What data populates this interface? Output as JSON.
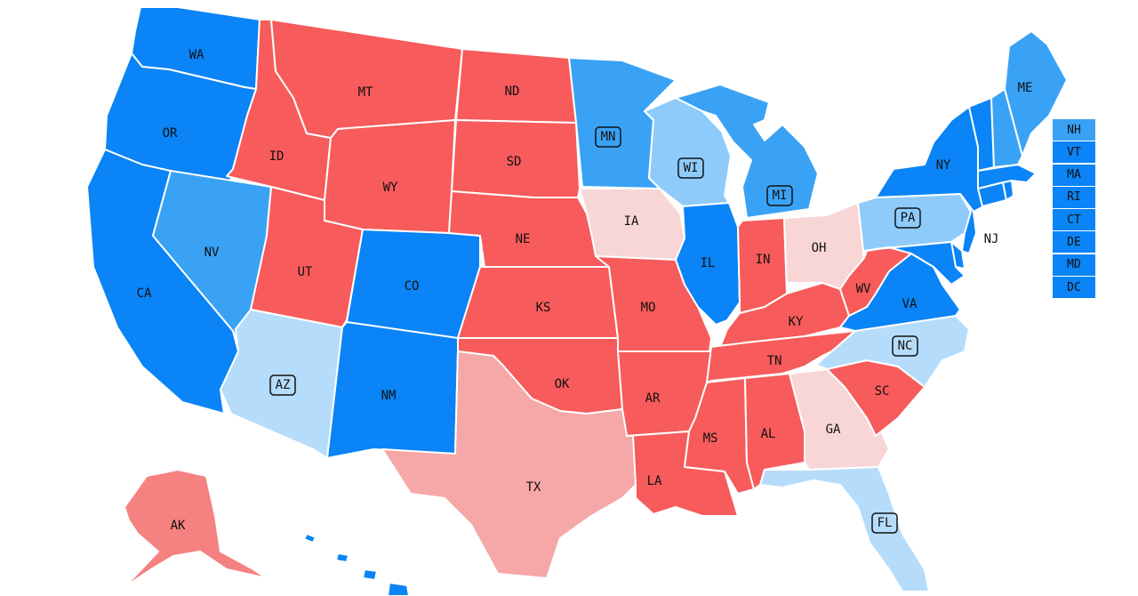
{
  "colors": {
    "safe_dem": "#0a84f6",
    "likely_dem": "#3aa2f5",
    "lean_dem": "#8ecbfa",
    "tilt_dem": "#b6dcfb",
    "safe_rep": "#f75b5b",
    "likely_rep": "#f58181",
    "lean_rep": "#f6a7a7",
    "tilt_rep": "#f9d6d6"
  },
  "states": [
    {
      "id": "WA",
      "label": "WA",
      "rating": "safe_dem",
      "badge": false
    },
    {
      "id": "OR",
      "label": "OR",
      "rating": "safe_dem",
      "badge": false
    },
    {
      "id": "CA",
      "label": "CA",
      "rating": "safe_dem",
      "badge": false
    },
    {
      "id": "NV",
      "label": "NV",
      "rating": "likely_dem",
      "badge": false
    },
    {
      "id": "ID",
      "label": "ID",
      "rating": "safe_rep",
      "badge": false
    },
    {
      "id": "MT",
      "label": "MT",
      "rating": "safe_rep",
      "badge": false
    },
    {
      "id": "WY",
      "label": "WY",
      "rating": "safe_rep",
      "badge": false
    },
    {
      "id": "UT",
      "label": "UT",
      "rating": "safe_rep",
      "badge": false
    },
    {
      "id": "AZ",
      "label": "AZ",
      "rating": "tilt_dem",
      "badge": true
    },
    {
      "id": "CO",
      "label": "CO",
      "rating": "safe_dem",
      "badge": false
    },
    {
      "id": "NM",
      "label": "NM",
      "rating": "safe_dem",
      "badge": false
    },
    {
      "id": "ND",
      "label": "ND",
      "rating": "safe_rep",
      "badge": false
    },
    {
      "id": "SD",
      "label": "SD",
      "rating": "safe_rep",
      "badge": false
    },
    {
      "id": "NE",
      "label": "NE",
      "rating": "safe_rep",
      "badge": false
    },
    {
      "id": "KS",
      "label": "KS",
      "rating": "safe_rep",
      "badge": false
    },
    {
      "id": "OK",
      "label": "OK",
      "rating": "safe_rep",
      "badge": false
    },
    {
      "id": "TX",
      "label": "TX",
      "rating": "lean_rep",
      "badge": false
    },
    {
      "id": "MN",
      "label": "MN",
      "rating": "likely_dem",
      "badge": true
    },
    {
      "id": "IA",
      "label": "IA",
      "rating": "tilt_rep",
      "badge": false
    },
    {
      "id": "MO",
      "label": "MO",
      "rating": "safe_rep",
      "badge": false
    },
    {
      "id": "AR",
      "label": "AR",
      "rating": "safe_rep",
      "badge": false
    },
    {
      "id": "LA",
      "label": "LA",
      "rating": "safe_rep",
      "badge": false
    },
    {
      "id": "WI",
      "label": "WI",
      "rating": "lean_dem",
      "badge": true
    },
    {
      "id": "IL",
      "label": "IL",
      "rating": "safe_dem",
      "badge": false
    },
    {
      "id": "MI",
      "label": "MI",
      "rating": "likely_dem",
      "badge": true
    },
    {
      "id": "IN",
      "label": "IN",
      "rating": "safe_rep",
      "badge": false
    },
    {
      "id": "OH",
      "label": "OH",
      "rating": "tilt_rep",
      "badge": false
    },
    {
      "id": "KY",
      "label": "KY",
      "rating": "safe_rep",
      "badge": false
    },
    {
      "id": "TN",
      "label": "TN",
      "rating": "safe_rep",
      "badge": false
    },
    {
      "id": "MS",
      "label": "MS",
      "rating": "safe_rep",
      "badge": false
    },
    {
      "id": "AL",
      "label": "AL",
      "rating": "safe_rep",
      "badge": false
    },
    {
      "id": "GA",
      "label": "GA",
      "rating": "tilt_rep",
      "badge": false
    },
    {
      "id": "FL",
      "label": "FL",
      "rating": "tilt_dem",
      "badge": true
    },
    {
      "id": "SC",
      "label": "SC",
      "rating": "safe_rep",
      "badge": false
    },
    {
      "id": "NC",
      "label": "NC",
      "rating": "tilt_dem",
      "badge": true
    },
    {
      "id": "VA",
      "label": "VA",
      "rating": "safe_dem",
      "badge": false
    },
    {
      "id": "WV",
      "label": "WV",
      "rating": "safe_rep",
      "badge": false
    },
    {
      "id": "PA",
      "label": "PA",
      "rating": "lean_dem",
      "badge": true
    },
    {
      "id": "NY",
      "label": "NY",
      "rating": "safe_dem",
      "badge": false
    },
    {
      "id": "NJ",
      "label": "NJ",
      "rating": "safe_dem",
      "badge": false
    },
    {
      "id": "DE",
      "label": "",
      "rating": "safe_dem",
      "badge": false
    },
    {
      "id": "MD",
      "label": "",
      "rating": "safe_dem",
      "badge": false
    },
    {
      "id": "CT",
      "label": "",
      "rating": "safe_dem",
      "badge": false
    },
    {
      "id": "RI",
      "label": "",
      "rating": "safe_dem",
      "badge": false
    },
    {
      "id": "MA",
      "label": "",
      "rating": "safe_dem",
      "badge": false
    },
    {
      "id": "VT",
      "label": "",
      "rating": "safe_dem",
      "badge": false
    },
    {
      "id": "NH",
      "label": "",
      "rating": "likely_dem",
      "badge": false
    },
    {
      "id": "ME",
      "label": "ME",
      "rating": "likely_dem",
      "badge": false
    },
    {
      "id": "AK",
      "label": "AK",
      "rating": "likely_rep",
      "badge": false
    },
    {
      "id": "HI",
      "label": "",
      "rating": "safe_dem",
      "badge": false
    }
  ],
  "small_states": [
    {
      "id": "NH",
      "label": "NH",
      "rating": "likely_dem"
    },
    {
      "id": "VT",
      "label": "VT",
      "rating": "safe_dem"
    },
    {
      "id": "MA",
      "label": "MA",
      "rating": "safe_dem"
    },
    {
      "id": "RI",
      "label": "RI",
      "rating": "safe_dem"
    },
    {
      "id": "CT",
      "label": "CT",
      "rating": "safe_dem"
    },
    {
      "id": "DE",
      "label": "DE",
      "rating": "safe_dem"
    },
    {
      "id": "MD",
      "label": "MD",
      "rating": "safe_dem"
    },
    {
      "id": "DC",
      "label": "DC",
      "rating": "safe_dem"
    }
  ]
}
